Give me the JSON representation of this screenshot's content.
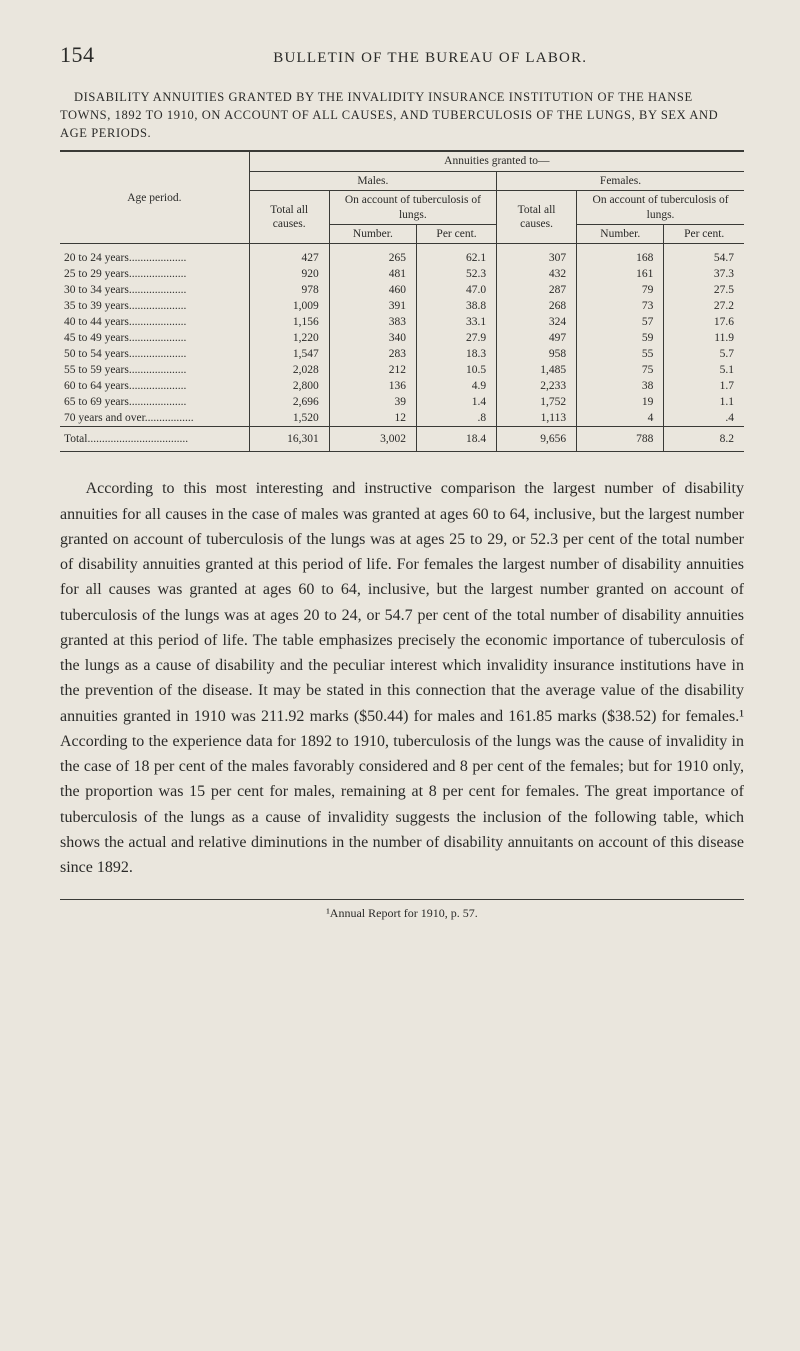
{
  "pageNumber": "154",
  "runningHead": "BULLETIN OF THE BUREAU OF LABOR.",
  "tableCaption": "DISABILITY ANNUITIES GRANTED BY THE INVALIDITY INSURANCE INSTITUTION OF THE HANSE TOWNS, 1892 TO 1910, ON ACCOUNT OF ALL CAUSES, AND TUBERCULOSIS OF THE LUNGS, BY SEX AND AGE PERIODS.",
  "headers": {
    "agePeriod": "Age period.",
    "annuitiesGrantedTo": "Annuities granted to—",
    "males": "Males.",
    "females": "Females.",
    "totalAllCauses": "Total all causes.",
    "onAccountTb": "On account of tuberculosis of lungs.",
    "number": "Number.",
    "percent": "Per cent."
  },
  "rows": [
    {
      "label": "20 to 24 years",
      "m_total": "427",
      "m_num": "265",
      "m_pct": "62.1",
      "f_total": "307",
      "f_num": "168",
      "f_pct": "54.7"
    },
    {
      "label": "25 to 29 years",
      "m_total": "920",
      "m_num": "481",
      "m_pct": "52.3",
      "f_total": "432",
      "f_num": "161",
      "f_pct": "37.3"
    },
    {
      "label": "30 to 34 years",
      "m_total": "978",
      "m_num": "460",
      "m_pct": "47.0",
      "f_total": "287",
      "f_num": "79",
      "f_pct": "27.5"
    },
    {
      "label": "35 to 39 years",
      "m_total": "1,009",
      "m_num": "391",
      "m_pct": "38.8",
      "f_total": "268",
      "f_num": "73",
      "f_pct": "27.2"
    },
    {
      "label": "40 to 44 years",
      "m_total": "1,156",
      "m_num": "383",
      "m_pct": "33.1",
      "f_total": "324",
      "f_num": "57",
      "f_pct": "17.6"
    },
    {
      "label": "45 to 49 years",
      "m_total": "1,220",
      "m_num": "340",
      "m_pct": "27.9",
      "f_total": "497",
      "f_num": "59",
      "f_pct": "11.9"
    },
    {
      "label": "50 to 54 years",
      "m_total": "1,547",
      "m_num": "283",
      "m_pct": "18.3",
      "f_total": "958",
      "f_num": "55",
      "f_pct": "5.7"
    },
    {
      "label": "55 to 59 years",
      "m_total": "2,028",
      "m_num": "212",
      "m_pct": "10.5",
      "f_total": "1,485",
      "f_num": "75",
      "f_pct": "5.1"
    },
    {
      "label": "60 to 64 years",
      "m_total": "2,800",
      "m_num": "136",
      "m_pct": "4.9",
      "f_total": "2,233",
      "f_num": "38",
      "f_pct": "1.7"
    },
    {
      "label": "65 to 69 years",
      "m_total": "2,696",
      "m_num": "39",
      "m_pct": "1.4",
      "f_total": "1,752",
      "f_num": "19",
      "f_pct": "1.1"
    },
    {
      "label": "70 years and over",
      "m_total": "1,520",
      "m_num": "12",
      "m_pct": ".8",
      "f_total": "1,113",
      "f_num": "4",
      "f_pct": ".4"
    }
  ],
  "totalRow": {
    "label": "Total",
    "m_total": "16,301",
    "m_num": "3,002",
    "m_pct": "18.4",
    "f_total": "9,656",
    "f_num": "788",
    "f_pct": "8.2"
  },
  "bodyParagraph": "According to this most interesting and instructive comparison the largest number of disability annuities for all causes in the case of males was granted at ages 60 to 64, inclusive, but the largest number granted on account of tuberculosis of the lungs was at ages 25 to 29, or 52.3 per cent of the total number of disability annuities granted at this period of life. For females the largest number of disability annuities for all causes was granted at ages 60 to 64, inclusive, but the largest number granted on account of tuberculosis of the lungs was at ages 20 to 24, or 54.7 per cent of the total number of disability annuities granted at this period of life. The table emphasizes precisely the economic importance of tuberculosis of the lungs as a cause of disability and the peculiar interest which invalidity insurance institutions have in the prevention of the disease. It may be stated in this connection that the average value of the disability annuities granted in 1910 was 211.92 marks ($50.44) for males and 161.85 marks ($38.52) for females.¹ According to the experience data for 1892 to 1910, tuberculosis of the lungs was the cause of invalidity in the case of 18 per cent of the males favorably considered and 8 per cent of the females; but for 1910 only, the proportion was 15 per cent for males, remaining at 8 per cent for females. The great importance of tuberculosis of the lungs as a cause of invalidity suggests the inclusion of the following table, which shows the actual and relative diminutions in the number of disability annuitants on account of this disease since 1892.",
  "footnote": "¹Annual Report for 1910, p. 57.",
  "colors": {
    "background": "#eae6dd",
    "text": "#2a2a28",
    "rule": "#3a3a36"
  },
  "tableStyle": {
    "fontSizePx": 11.5,
    "bodyFontSizePx": 16,
    "captionFontSizePx": 12.5,
    "headerLetterSpacing": 0.6
  }
}
